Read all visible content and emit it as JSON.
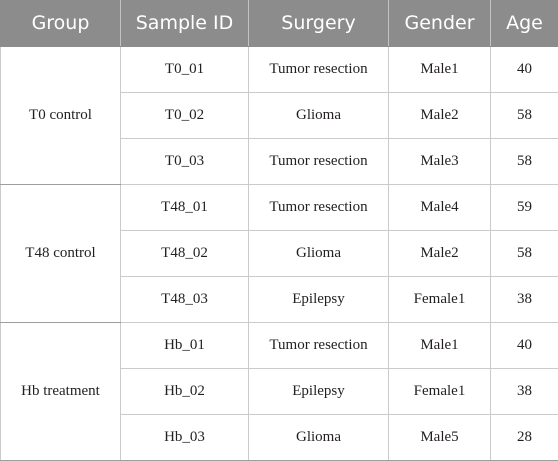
{
  "table": {
    "headers": [
      "Group",
      "Sample ID",
      "Surgery",
      "Gender",
      "Age"
    ],
    "groups": [
      {
        "name": "T0 control",
        "rows": [
          {
            "sample_id": "T0_01",
            "surgery": "Tumor resection",
            "gender": "Male1",
            "age": "40"
          },
          {
            "sample_id": "T0_02",
            "surgery": "Glioma",
            "gender": "Male2",
            "age": "58"
          },
          {
            "sample_id": "T0_03",
            "surgery": "Tumor resection",
            "gender": "Male3",
            "age": "58"
          }
        ]
      },
      {
        "name": "T48 control",
        "rows": [
          {
            "sample_id": "T48_01",
            "surgery": "Tumor resection",
            "gender": "Male4",
            "age": "59"
          },
          {
            "sample_id": "T48_02",
            "surgery": "Glioma",
            "gender": "Male2",
            "age": "58"
          },
          {
            "sample_id": "T48_03",
            "surgery": "Epilepsy",
            "gender": "Female1",
            "age": "38"
          }
        ]
      },
      {
        "name": "Hb treatment",
        "rows": [
          {
            "sample_id": "Hb_01",
            "surgery": "Tumor resection",
            "gender": "Male1",
            "age": "40"
          },
          {
            "sample_id": "Hb_02",
            "surgery": "Epilepsy",
            "gender": "Female1",
            "age": "38"
          },
          {
            "sample_id": "Hb_03",
            "surgery": "Glioma",
            "gender": "Male5",
            "age": "28"
          }
        ]
      }
    ]
  }
}
